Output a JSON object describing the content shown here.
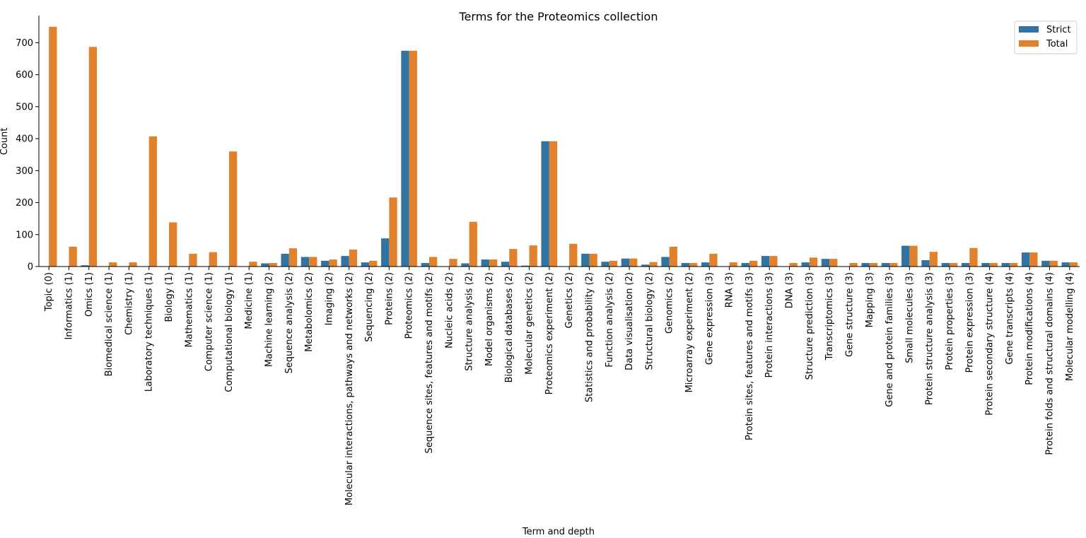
{
  "chart_data": {
    "type": "bar",
    "title": "Terms for the Proteomics collection",
    "xlabel": "Term and depth",
    "ylabel": "Count",
    "ylim": [
      0,
      785
    ],
    "yticks": [
      0,
      100,
      200,
      300,
      400,
      500,
      600,
      700
    ],
    "grid": false,
    "legend_position": "top-right",
    "categories": [
      "Topic (0)",
      "Informatics (1)",
      "Omics (1)",
      "Biomedical science (1)",
      "Chemistry (1)",
      "Laboratory techniques (1)",
      "Biology (1)",
      "Mathematics (1)",
      "Computer science (1)",
      "Computational biology (1)",
      "Medicine (1)",
      "Machine learning (2)",
      "Sequence analysis (2)",
      "Metabolomics (2)",
      "Imaging (2)",
      "Molecular interactions, pathways and networks (2)",
      "Sequencing (2)",
      "Proteins (2)",
      "Proteomics (2)",
      "Sequence sites, features and motifs (2)",
      "Nucleic acids (2)",
      "Structure analysis (2)",
      "Model organisms (2)",
      "Biological databases (2)",
      "Molecular genetics (2)",
      "Proteomics experiment (2)",
      "Genetics (2)",
      "Statistics and probability (2)",
      "Function analysis (2)",
      "Data visualisation (2)",
      "Structural biology (2)",
      "Genomics (2)",
      "Microarray experiment (2)",
      "Gene expression (3)",
      "RNA (3)",
      "Protein sites, features and motifs (3)",
      "Protein interactions (3)",
      "DNA (3)",
      "Structure prediction (3)",
      "Transcriptomics (3)",
      "Gene structure (3)",
      "Mapping (3)",
      "Gene and protein families (3)",
      "Small molecules (3)",
      "Protein structure analysis (3)",
      "Protein properties (3)",
      "Protein expression (3)",
      "Protein secondary structure (4)",
      "Gene transcripts (4)",
      "Protein modifications (4)",
      "Protein folds and structural domains (4)",
      "Molecular modelling (4)"
    ],
    "series": [
      {
        "name": "Strict",
        "color": "#3274a1",
        "values": [
          0,
          0,
          4,
          1,
          0,
          0,
          1,
          0,
          0,
          1,
          0,
          10,
          40,
          30,
          18,
          33,
          13,
          88,
          675,
          11,
          0,
          10,
          22,
          15,
          3,
          392,
          1,
          40,
          15,
          25,
          6,
          30,
          11,
          13,
          1,
          11,
          33,
          1,
          13,
          24,
          1,
          11,
          11,
          65,
          20,
          11,
          11,
          11,
          11,
          44,
          18,
          13
        ]
      },
      {
        "name": "Total",
        "color": "#e1812c",
        "values": [
          750,
          62,
          687,
          13,
          13,
          407,
          138,
          40,
          45,
          360,
          15,
          11,
          57,
          30,
          22,
          53,
          18,
          216,
          675,
          30,
          24,
          140,
          22,
          55,
          66,
          392,
          71,
          40,
          18,
          25,
          14,
          62,
          11,
          40,
          13,
          18,
          33,
          11,
          28,
          24,
          11,
          11,
          11,
          65,
          46,
          11,
          58,
          11,
          11,
          44,
          18,
          13
        ]
      }
    ]
  }
}
